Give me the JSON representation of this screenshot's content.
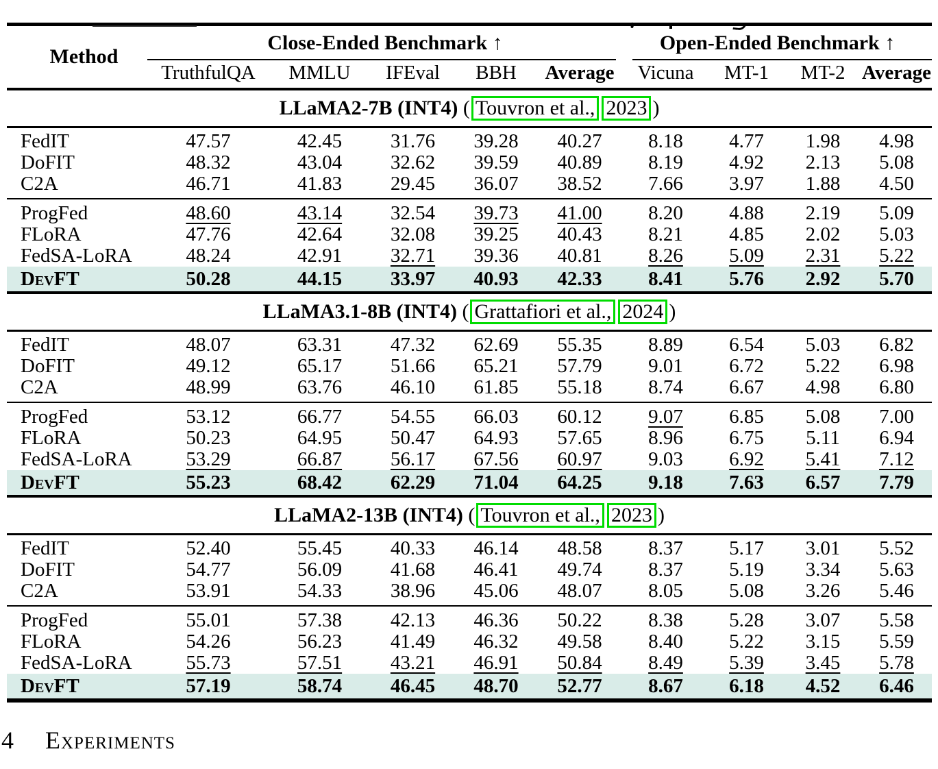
{
  "colors": {
    "highlight_row_bg": "#d9ece8",
    "citation_box_border": "#00dc00",
    "rule_color": "#000000"
  },
  "table": {
    "header": {
      "method": "Method",
      "close_ended_group": "Close-Ended Benchmark ↑",
      "open_ended_group": "Open-Ended Benchmark ↑",
      "sub_columns": [
        {
          "label": "TruthfulQA",
          "bold": false
        },
        {
          "label": "MMLU",
          "bold": false
        },
        {
          "label": "IFEval",
          "bold": false
        },
        {
          "label": "BBH",
          "bold": false
        },
        {
          "label": "Average",
          "bold": true
        },
        {
          "label": "Vicuna",
          "bold": false
        },
        {
          "label": "MT-1",
          "bold": false
        },
        {
          "label": "MT-2",
          "bold": false
        },
        {
          "label": "Average",
          "bold": true
        }
      ]
    },
    "sections": [
      {
        "model": "LLaMA2-7B (INT4)",
        "citation": {
          "open_paren": " (",
          "authors": "Touvron et al.,",
          "year": "2023",
          "close_paren": ")"
        },
        "groups": [
          {
            "rows": [
              {
                "method": "FedIT",
                "values": [
                  "47.57",
                  "42.45",
                  "31.76",
                  "39.28",
                  "40.27",
                  "8.18",
                  "4.77",
                  "1.98",
                  "4.98"
                ],
                "underline": [],
                "bold_all": false,
                "highlight": false,
                "smallcaps": false
              },
              {
                "method": "DoFIT",
                "values": [
                  "48.32",
                  "43.04",
                  "32.62",
                  "39.59",
                  "40.89",
                  "8.19",
                  "4.92",
                  "2.13",
                  "5.08"
                ],
                "underline": [],
                "bold_all": false,
                "highlight": false,
                "smallcaps": false
              },
              {
                "method": "C2A",
                "values": [
                  "46.71",
                  "41.83",
                  "29.45",
                  "36.07",
                  "38.52",
                  "7.66",
                  "3.97",
                  "1.88",
                  "4.50"
                ],
                "underline": [],
                "bold_all": false,
                "highlight": false,
                "smallcaps": false
              }
            ]
          },
          {
            "rows": [
              {
                "method": "ProgFed",
                "values": [
                  "48.60",
                  "43.14",
                  "32.54",
                  "39.73",
                  "41.00",
                  "8.20",
                  "4.88",
                  "2.19",
                  "5.09"
                ],
                "underline": [
                  0,
                  1,
                  3,
                  4
                ],
                "bold_all": false,
                "highlight": false,
                "smallcaps": false
              },
              {
                "method": "FLoRA",
                "values": [
                  "47.76",
                  "42.64",
                  "32.08",
                  "39.25",
                  "40.43",
                  "8.21",
                  "4.85",
                  "2.02",
                  "5.03"
                ],
                "underline": [],
                "bold_all": false,
                "highlight": false,
                "smallcaps": false
              },
              {
                "method": "FedSA-LoRA",
                "values": [
                  "48.24",
                  "42.91",
                  "32.71",
                  "39.36",
                  "40.81",
                  "8.26",
                  "5.09",
                  "2.31",
                  "5.22"
                ],
                "underline": [
                  2,
                  5,
                  6,
                  7,
                  8
                ],
                "bold_all": false,
                "highlight": false,
                "smallcaps": false
              },
              {
                "method": "DevFT",
                "values": [
                  "50.28",
                  "44.15",
                  "33.97",
                  "40.93",
                  "42.33",
                  "8.41",
                  "5.76",
                  "2.92",
                  "5.70"
                ],
                "underline": [],
                "bold_all": true,
                "highlight": true,
                "smallcaps": true
              }
            ]
          }
        ]
      },
      {
        "model": "LLaMA3.1-8B (INT4)",
        "citation": {
          "open_paren": " (",
          "authors": "Grattafiori et al.,",
          "year": "2024",
          "close_paren": ")"
        },
        "groups": [
          {
            "rows": [
              {
                "method": "FedIT",
                "values": [
                  "48.07",
                  "63.31",
                  "47.32",
                  "62.69",
                  "55.35",
                  "8.89",
                  "6.54",
                  "5.03",
                  "6.82"
                ],
                "underline": [],
                "bold_all": false,
                "highlight": false,
                "smallcaps": false
              },
              {
                "method": "DoFIT",
                "values": [
                  "49.12",
                  "65.17",
                  "51.66",
                  "65.21",
                  "57.79",
                  "9.01",
                  "6.72",
                  "5.22",
                  "6.98"
                ],
                "underline": [],
                "bold_all": false,
                "highlight": false,
                "smallcaps": false
              },
              {
                "method": "C2A",
                "values": [
                  "48.99",
                  "63.76",
                  "46.10",
                  "61.85",
                  "55.18",
                  "8.74",
                  "6.67",
                  "4.98",
                  "6.80"
                ],
                "underline": [],
                "bold_all": false,
                "highlight": false,
                "smallcaps": false
              }
            ]
          },
          {
            "rows": [
              {
                "method": "ProgFed",
                "values": [
                  "53.12",
                  "66.77",
                  "54.55",
                  "66.03",
                  "60.12",
                  "9.07",
                  "6.85",
                  "5.08",
                  "7.00"
                ],
                "underline": [
                  5
                ],
                "bold_all": false,
                "highlight": false,
                "smallcaps": false
              },
              {
                "method": "FLoRA",
                "values": [
                  "50.23",
                  "64.95",
                  "50.47",
                  "64.93",
                  "57.65",
                  "8.96",
                  "6.75",
                  "5.11",
                  "6.94"
                ],
                "underline": [],
                "bold_all": false,
                "highlight": false,
                "smallcaps": false
              },
              {
                "method": "FedSA-LoRA",
                "values": [
                  "53.29",
                  "66.87",
                  "56.17",
                  "67.56",
                  "60.97",
                  "9.03",
                  "6.92",
                  "5.41",
                  "7.12"
                ],
                "underline": [
                  0,
                  1,
                  2,
                  3,
                  4,
                  6,
                  7,
                  8
                ],
                "bold_all": false,
                "highlight": false,
                "smallcaps": false
              },
              {
                "method": "DevFT",
                "values": [
                  "55.23",
                  "68.42",
                  "62.29",
                  "71.04",
                  "64.25",
                  "9.18",
                  "7.63",
                  "6.57",
                  "7.79"
                ],
                "underline": [],
                "bold_all": true,
                "highlight": true,
                "smallcaps": true
              }
            ]
          }
        ]
      },
      {
        "model": "LLaMA2-13B (INT4)",
        "citation": {
          "open_paren": " (",
          "authors": "Touvron et al.,",
          "year": "2023",
          "close_paren": ")"
        },
        "groups": [
          {
            "rows": [
              {
                "method": "FedIT",
                "values": [
                  "52.40",
                  "55.45",
                  "40.33",
                  "46.14",
                  "48.58",
                  "8.37",
                  "5.17",
                  "3.01",
                  "5.52"
                ],
                "underline": [],
                "bold_all": false,
                "highlight": false,
                "smallcaps": false
              },
              {
                "method": "DoFIT",
                "values": [
                  "54.77",
                  "56.09",
                  "41.68",
                  "46.41",
                  "49.74",
                  "8.37",
                  "5.19",
                  "3.34",
                  "5.63"
                ],
                "underline": [],
                "bold_all": false,
                "highlight": false,
                "smallcaps": false
              },
              {
                "method": "C2A",
                "values": [
                  "53.91",
                  "54.33",
                  "38.96",
                  "45.06",
                  "48.07",
                  "8.05",
                  "5.08",
                  "3.26",
                  "5.46"
                ],
                "underline": [],
                "bold_all": false,
                "highlight": false,
                "smallcaps": false
              }
            ]
          },
          {
            "rows": [
              {
                "method": "ProgFed",
                "values": [
                  "55.01",
                  "57.38",
                  "42.13",
                  "46.36",
                  "50.22",
                  "8.38",
                  "5.28",
                  "3.07",
                  "5.58"
                ],
                "underline": [],
                "bold_all": false,
                "highlight": false,
                "smallcaps": false
              },
              {
                "method": "FLoRA",
                "values": [
                  "54.26",
                  "56.23",
                  "41.49",
                  "46.32",
                  "49.58",
                  "8.40",
                  "5.22",
                  "3.15",
                  "5.59"
                ],
                "underline": [],
                "bold_all": false,
                "highlight": false,
                "smallcaps": false
              },
              {
                "method": "FedSA-LoRA",
                "values": [
                  "55.73",
                  "57.51",
                  "43.21",
                  "46.91",
                  "50.84",
                  "8.49",
                  "5.39",
                  "3.45",
                  "5.78"
                ],
                "underline": [
                  0,
                  1,
                  2,
                  3,
                  4,
                  5,
                  6,
                  7,
                  8
                ],
                "bold_all": false,
                "highlight": false,
                "smallcaps": false
              },
              {
                "method": "DevFT",
                "values": [
                  "57.19",
                  "58.74",
                  "46.45",
                  "48.70",
                  "52.77",
                  "8.67",
                  "6.18",
                  "4.52",
                  "6.46"
                ],
                "underline": [],
                "bold_all": true,
                "highlight": true,
                "smallcaps": true
              }
            ]
          }
        ]
      }
    ]
  },
  "section_heading": {
    "number": "4",
    "title": "Experiments"
  }
}
